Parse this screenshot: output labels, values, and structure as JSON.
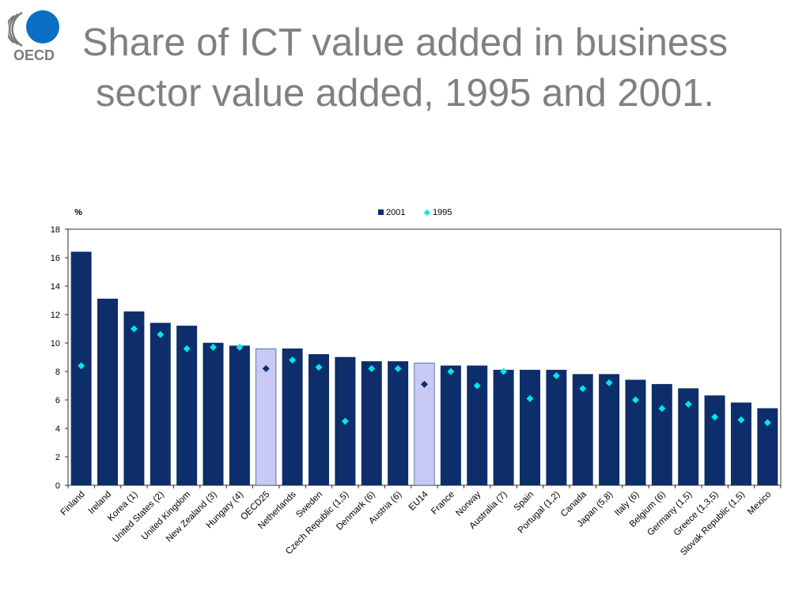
{
  "logo": {
    "text": "OECD",
    "brand_color": "#0a6fc2"
  },
  "title": "Share of ICT value added in business sector value added, 1995 and 2001.",
  "chart_data": {
    "type": "bar",
    "ylabel": "%",
    "ylim": [
      0,
      18
    ],
    "yticks": [
      0,
      2,
      4,
      6,
      8,
      10,
      12,
      14,
      16,
      18
    ],
    "categories": [
      "Finland",
      "Ireland",
      "Korea (1)",
      "United States (2)",
      "United Kingdom",
      "New Zealand (3)",
      "Hungary (4)",
      "OECD25",
      "Netherlands",
      "Sweden",
      "Czech Republic (1,5)",
      "Denmark (6)",
      "Austria (6)",
      "EU14",
      "France",
      "Norway",
      "Australia (7)",
      "Spain",
      "Portugal (1,2)",
      "Canada",
      "Japan (5,8)",
      "Italy (6)",
      "Belgium (6)",
      "Germany (1,5)",
      "Greece (1,3,5)",
      "Slovak Republic (1,5)",
      "Mexico"
    ],
    "highlight": [
      "OECD25",
      "EU14"
    ],
    "series": [
      {
        "name": "2001",
        "kind": "bar",
        "color": "#0d2d6b",
        "highlight_color": "#c9c9f5",
        "values": [
          16.4,
          13.1,
          12.2,
          11.4,
          11.2,
          10.0,
          9.8,
          9.6,
          9.6,
          9.2,
          9.0,
          8.7,
          8.7,
          8.6,
          8.4,
          8.4,
          8.1,
          8.1,
          8.1,
          7.8,
          7.8,
          7.4,
          7.1,
          6.8,
          6.3,
          5.8,
          5.4
        ]
      },
      {
        "name": "1995",
        "kind": "marker",
        "color": "#00e5ee",
        "highlight_color": "#0d2d6b",
        "values": [
          8.4,
          null,
          11.0,
          10.6,
          9.6,
          9.7,
          9.7,
          8.2,
          8.8,
          8.3,
          4.5,
          8.2,
          8.2,
          7.1,
          8.0,
          7.0,
          8.0,
          6.1,
          7.7,
          6.8,
          7.2,
          6.0,
          5.4,
          5.7,
          4.8,
          4.6,
          4.4
        ]
      }
    ],
    "legend_position": "top-right",
    "grid": false
  }
}
